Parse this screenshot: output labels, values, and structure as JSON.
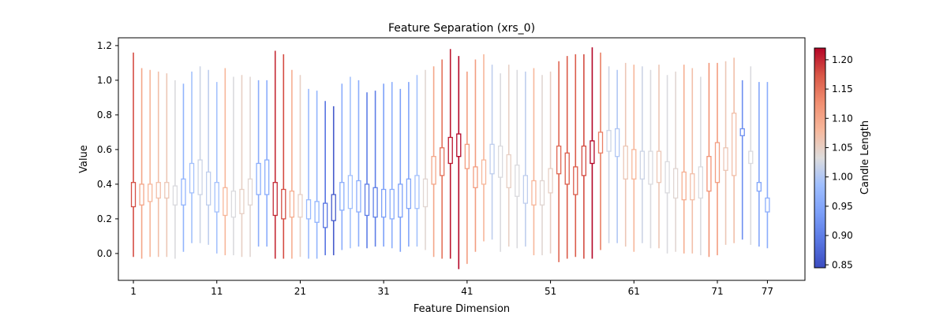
{
  "chart_data": {
    "type": "candlestick",
    "title": "Feature Separation (xrs_0)",
    "xlabel": "Feature Dimension",
    "ylabel": "Value",
    "xlim": [
      -0.8,
      81.5
    ],
    "ylim": [
      -0.155,
      1.245
    ],
    "xticks": [
      1,
      11,
      21,
      31,
      41,
      51,
      61,
      71,
      77
    ],
    "yticks": [
      0.0,
      0.2,
      0.4,
      0.6,
      0.8,
      1.0,
      1.2
    ],
    "colorbar": {
      "label": "Candle Length",
      "min": 0.845,
      "max": 1.22,
      "colormap": "coolwarm",
      "ticks": [
        0.85,
        0.9,
        0.95,
        1.0,
        1.05,
        1.1,
        1.15,
        1.2
      ]
    },
    "series": [
      {
        "x": [
          1,
          2,
          3,
          4,
          5,
          6,
          7,
          8,
          9,
          10,
          11,
          12,
          13,
          14,
          15,
          16,
          17,
          18,
          19,
          20,
          21,
          22,
          23,
          24,
          25,
          26,
          27,
          28,
          29,
          30,
          31,
          32,
          33,
          34,
          35,
          36,
          37,
          38,
          39,
          40,
          41,
          42,
          43,
          44,
          45,
          46,
          47,
          48,
          49,
          50,
          51,
          52,
          53,
          54,
          55,
          56,
          57,
          58,
          59,
          60,
          61,
          62,
          63,
          64,
          65,
          66,
          67,
          68,
          69,
          70,
          71,
          72,
          73,
          74,
          75,
          76,
          77
        ],
        "low": [
          -0.02,
          -0.03,
          -0.02,
          -0.02,
          -0.02,
          -0.03,
          0.01,
          0.06,
          0.06,
          0.05,
          0.0,
          -0.01,
          -0.01,
          -0.02,
          -0.02,
          0.04,
          0.04,
          -0.03,
          -0.03,
          -0.03,
          -0.02,
          -0.03,
          -0.03,
          -0.01,
          -0.01,
          0.02,
          0.03,
          0.04,
          0.03,
          0.04,
          0.04,
          0.03,
          0.01,
          0.04,
          0.04,
          0.02,
          -0.02,
          -0.03,
          -0.03,
          -0.09,
          -0.06,
          0.01,
          0.07,
          0.08,
          0.01,
          0.04,
          0.03,
          0.04,
          -0.01,
          -0.01,
          0.0,
          -0.05,
          -0.03,
          -0.02,
          -0.03,
          -0.03,
          0.02,
          0.06,
          0.06,
          0.04,
          0.01,
          0.06,
          0.03,
          0.03,
          0.0,
          0.01,
          0.0,
          0.0,
          -0.01,
          -0.02,
          -0.01,
          0.05,
          0.06,
          0.08,
          0.05,
          0.04,
          0.03
        ],
        "open": [
          0.41,
          0.28,
          0.3,
          0.32,
          0.32,
          0.28,
          0.28,
          0.35,
          0.34,
          0.28,
          0.24,
          0.22,
          0.21,
          0.23,
          0.28,
          0.34,
          0.34,
          0.22,
          0.2,
          0.21,
          0.21,
          0.2,
          0.18,
          0.15,
          0.19,
          0.25,
          0.26,
          0.24,
          0.22,
          0.21,
          0.21,
          0.2,
          0.21,
          0.26,
          0.26,
          0.27,
          0.4,
          0.45,
          0.52,
          0.56,
          0.49,
          0.38,
          0.4,
          0.46,
          0.44,
          0.38,
          0.33,
          0.29,
          0.28,
          0.28,
          0.35,
          0.46,
          0.4,
          0.34,
          0.45,
          0.52,
          0.58,
          0.59,
          0.56,
          0.43,
          0.43,
          0.43,
          0.4,
          0.41,
          0.35,
          0.32,
          0.31,
          0.31,
          0.32,
          0.36,
          0.41,
          0.48,
          0.45,
          0.68,
          0.59,
          0.36,
          0.24
        ],
        "high": [
          1.16,
          1.07,
          1.06,
          1.05,
          1.04,
          1.0,
          0.98,
          1.05,
          1.08,
          1.06,
          0.99,
          1.07,
          1.02,
          1.03,
          1.02,
          1.0,
          1.0,
          1.17,
          1.15,
          1.06,
          1.03,
          0.95,
          0.94,
          0.88,
          0.85,
          0.98,
          1.02,
          1.0,
          0.93,
          0.94,
          0.98,
          0.99,
          0.95,
          0.99,
          1.03,
          1.06,
          1.08,
          1.12,
          1.18,
          1.14,
          1.05,
          1.12,
          1.15,
          1.09,
          1.04,
          1.09,
          1.06,
          1.05,
          1.07,
          1.03,
          1.05,
          1.11,
          1.14,
          1.15,
          1.15,
          1.19,
          1.16,
          1.08,
          1.06,
          1.1,
          1.09,
          1.08,
          1.06,
          1.09,
          1.03,
          1.05,
          1.09,
          1.07,
          1.02,
          1.1,
          1.1,
          1.11,
          1.13,
          1.0,
          1.08,
          0.99,
          0.99
        ],
        "close": [
          0.27,
          0.4,
          0.4,
          0.41,
          0.41,
          0.39,
          0.43,
          0.52,
          0.54,
          0.47,
          0.41,
          0.38,
          0.36,
          0.37,
          0.43,
          0.52,
          0.54,
          0.41,
          0.37,
          0.36,
          0.34,
          0.31,
          0.3,
          0.29,
          0.34,
          0.41,
          0.45,
          0.42,
          0.4,
          0.38,
          0.37,
          0.37,
          0.4,
          0.43,
          0.45,
          0.43,
          0.56,
          0.61,
          0.67,
          0.69,
          0.63,
          0.5,
          0.54,
          0.63,
          0.62,
          0.57,
          0.51,
          0.45,
          0.42,
          0.42,
          0.49,
          0.62,
          0.58,
          0.5,
          0.62,
          0.65,
          0.7,
          0.71,
          0.72,
          0.62,
          0.6,
          0.59,
          0.59,
          0.59,
          0.53,
          0.49,
          0.47,
          0.46,
          0.5,
          0.56,
          0.64,
          0.61,
          0.81,
          0.72,
          0.52,
          0.41,
          0.32
        ],
        "length": [
          1.18,
          1.1,
          1.08,
          1.07,
          1.06,
          1.03,
          0.97,
          0.99,
          1.02,
          1.01,
          0.99,
          1.08,
          1.03,
          1.05,
          1.04,
          0.96,
          0.96,
          1.2,
          1.18,
          1.09,
          1.05,
          0.98,
          0.97,
          0.89,
          0.86,
          0.96,
          0.99,
          0.96,
          0.9,
          0.9,
          0.94,
          0.96,
          0.94,
          0.95,
          0.99,
          1.04,
          1.1,
          1.15,
          1.21,
          1.23,
          1.11,
          1.11,
          1.08,
          1.01,
          1.03,
          1.05,
          1.03,
          1.01,
          1.08,
          1.04,
          1.05,
          1.16,
          1.17,
          1.17,
          1.18,
          1.22,
          1.14,
          1.02,
          1.0,
          1.06,
          1.08,
          1.02,
          1.03,
          1.06,
          1.03,
          1.04,
          1.09,
          1.07,
          1.03,
          1.12,
          1.11,
          1.06,
          1.07,
          0.92,
          1.03,
          0.95,
          0.96
        ]
      }
    ]
  }
}
